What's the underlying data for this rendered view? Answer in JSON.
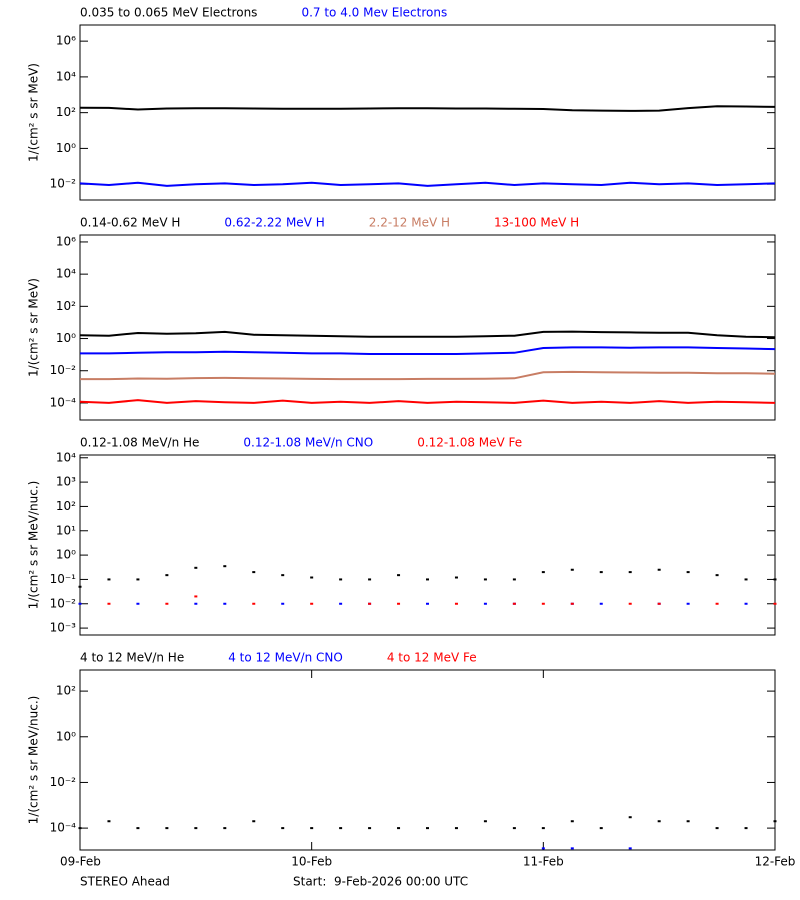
{
  "chart_data": [
    {
      "type": "line",
      "log_scale": true,
      "ylabel": "1/(cm² s sr MeV)",
      "x": [
        0,
        0.125,
        0.25,
        0.375,
        0.5,
        0.625,
        0.75,
        0.875,
        1,
        1.125,
        1.25,
        1.375,
        1.5,
        1.625,
        1.75,
        1.875,
        2,
        2.125,
        2.25,
        2.375,
        2.5,
        2.625,
        2.75,
        2.875,
        3
      ],
      "xlim": [
        0,
        3
      ],
      "ylim": [
        0.0013,
        8000000
      ],
      "yticks": [
        {
          "value": 0.01,
          "label": "10⁻²"
        },
        {
          "value": 1,
          "label": "10⁰"
        },
        {
          "value": 100,
          "label": "10²"
        },
        {
          "value": 10000,
          "label": "10⁴"
        },
        {
          "value": 1000000,
          "label": "10⁶"
        }
      ],
      "series": [
        {
          "name": "0.035 to 0.065 MeV Electrons",
          "color": "#000000",
          "values": [
            190,
            185,
            150,
            170,
            175,
            175,
            170,
            165,
            165,
            165,
            170,
            175,
            175,
            170,
            170,
            165,
            160,
            135,
            130,
            125,
            130,
            180,
            230,
            220,
            210
          ]
        },
        {
          "name": "0.7 to 4.0 Mev Electrons",
          "color": "#0000ff",
          "values": [
            0.011,
            0.009,
            0.012,
            0.008,
            0.01,
            0.011,
            0.009,
            0.01,
            0.012,
            0.009,
            0.01,
            0.011,
            0.008,
            0.01,
            0.012,
            0.009,
            0.011,
            0.01,
            0.009,
            0.012,
            0.01,
            0.011,
            0.009,
            0.01,
            0.011
          ]
        }
      ]
    },
    {
      "type": "line",
      "log_scale": true,
      "ylabel": "1/(cm² s sr MeV)",
      "x": [
        0,
        0.125,
        0.25,
        0.375,
        0.5,
        0.625,
        0.75,
        0.875,
        1,
        1.125,
        1.25,
        1.375,
        1.5,
        1.625,
        1.75,
        1.875,
        2,
        2.125,
        2.25,
        2.375,
        2.5,
        2.625,
        2.75,
        2.875,
        3
      ],
      "xlim": [
        0,
        3
      ],
      "ylim": [
        8.7e-06,
        2700000
      ],
      "yticks": [
        {
          "value": 0.0001,
          "label": "10⁻⁴"
        },
        {
          "value": 0.01,
          "label": "10⁻²"
        },
        {
          "value": 1,
          "label": "10⁰"
        },
        {
          "value": 100,
          "label": "10²"
        },
        {
          "value": 10000,
          "label": "10⁴"
        },
        {
          "value": 1000000,
          "label": "10⁶"
        }
      ],
      "series": [
        {
          "name": "0.14-0.62 MeV H",
          "color": "#000000",
          "values": [
            1.6,
            1.5,
            2.2,
            2.0,
            2.1,
            2.6,
            1.7,
            1.6,
            1.5,
            1.4,
            1.3,
            1.3,
            1.3,
            1.3,
            1.4,
            1.5,
            2.6,
            2.7,
            2.5,
            2.4,
            2.3,
            2.3,
            1.6,
            1.3,
            1.2
          ]
        },
        {
          "name": "0.62-2.22 MeV H",
          "color": "#0000ff",
          "values": [
            0.12,
            0.12,
            0.13,
            0.14,
            0.14,
            0.15,
            0.14,
            0.13,
            0.12,
            0.12,
            0.11,
            0.11,
            0.11,
            0.11,
            0.12,
            0.13,
            0.26,
            0.28,
            0.28,
            0.27,
            0.28,
            0.28,
            0.26,
            0.24,
            0.22
          ]
        },
        {
          "name": "2.2-12 MeV H",
          "color": "#c87d64",
          "values": [
            0.003,
            0.003,
            0.0033,
            0.0032,
            0.0035,
            0.0036,
            0.0034,
            0.0033,
            0.0031,
            0.003,
            0.003,
            0.003,
            0.0031,
            0.0031,
            0.0032,
            0.0034,
            0.008,
            0.0085,
            0.008,
            0.0078,
            0.0075,
            0.0075,
            0.007,
            0.007,
            0.0065
          ]
        },
        {
          "name": "13-100 MeV H",
          "color": "#ff0000",
          "values": [
            0.00012,
            0.0001,
            0.00015,
            0.0001,
            0.00013,
            0.00011,
            0.0001,
            0.00014,
            0.0001,
            0.00012,
            0.0001,
            0.00013,
            0.0001,
            0.00012,
            0.00011,
            0.0001,
            0.00014,
            0.0001,
            0.00012,
            0.0001,
            0.00013,
            0.0001,
            0.00012,
            0.00011,
            0.0001
          ]
        }
      ]
    },
    {
      "type": "scatter",
      "log_scale": true,
      "ylabel": "1/(cm² s sr MeV/nuc.)",
      "x": [
        0,
        0.125,
        0.25,
        0.375,
        0.5,
        0.625,
        0.75,
        0.875,
        1,
        1.125,
        1.25,
        1.375,
        1.5,
        1.625,
        1.75,
        1.875,
        2,
        2.125,
        2.25,
        2.375,
        2.5,
        2.625,
        2.75,
        2.875,
        3
      ],
      "xlim": [
        0,
        3
      ],
      "ylim": [
        0.00052,
        13000
      ],
      "yticks": [
        {
          "value": 0.001,
          "label": "10⁻³"
        },
        {
          "value": 0.01,
          "label": "10⁻²"
        },
        {
          "value": 0.1,
          "label": "10⁻¹"
        },
        {
          "value": 1,
          "label": "10⁰"
        },
        {
          "value": 10,
          "label": "10¹"
        },
        {
          "value": 100,
          "label": "10²"
        },
        {
          "value": 1000,
          "label": "10³"
        },
        {
          "value": 10000,
          "label": "10⁴"
        }
      ],
      "series": [
        {
          "name": "0.12-1.08 MeV/n He",
          "color": "#000000",
          "values": [
            0.05,
            0.1,
            0.1,
            0.15,
            0.3,
            0.35,
            0.2,
            0.15,
            0.12,
            0.1,
            0.1,
            0.15,
            0.1,
            0.12,
            0.1,
            0.1,
            0.2,
            0.25,
            0.2,
            0.2,
            0.25,
            0.2,
            0.15,
            0.1,
            0.1
          ]
        },
        {
          "name": "0.12-1.08 MeV/n CNO",
          "color": "#0000ff",
          "values": [
            0.01,
            null,
            0.01,
            null,
            0.01,
            0.01,
            null,
            0.01,
            null,
            0.01,
            0.01,
            null,
            0.01,
            null,
            0.01,
            0.01,
            null,
            0.01,
            0.01,
            null,
            0.01,
            0.01,
            null,
            0.01,
            null
          ]
        },
        {
          "name": "0.12-1.08 MeV Fe",
          "color": "#ff0000",
          "values": [
            null,
            0.01,
            null,
            0.01,
            0.02,
            null,
            0.01,
            null,
            0.01,
            null,
            0.01,
            0.01,
            null,
            0.01,
            null,
            0.01,
            0.01,
            0.01,
            null,
            0.01,
            0.01,
            null,
            0.01,
            null,
            0.01
          ]
        }
      ]
    },
    {
      "type": "scatter",
      "log_scale": true,
      "ylabel": "1/(cm² s sr MeV/nuc.)",
      "x": [
        0,
        0.125,
        0.25,
        0.375,
        0.5,
        0.625,
        0.75,
        0.875,
        1,
        1.125,
        1.25,
        1.375,
        1.5,
        1.625,
        1.75,
        1.875,
        2,
        2.125,
        2.25,
        2.375,
        2.5,
        2.625,
        2.75,
        2.875,
        3
      ],
      "xlim": [
        0,
        3
      ],
      "ylim": [
        1.1e-05,
        840
      ],
      "xticks": [
        {
          "value": 0,
          "label": "09-Feb"
        },
        {
          "value": 1,
          "label": "10-Feb"
        },
        {
          "value": 2,
          "label": "11-Feb"
        },
        {
          "value": 3,
          "label": "12-Feb"
        }
      ],
      "yticks": [
        {
          "value": 0.0001,
          "label": "10⁻⁴"
        },
        {
          "value": 0.01,
          "label": "10⁻²"
        },
        {
          "value": 1,
          "label": "10⁰"
        },
        {
          "value": 100,
          "label": "10²"
        }
      ],
      "series": [
        {
          "name": "4 to 12 MeV/n He",
          "color": "#000000",
          "values": [
            0.0001,
            0.0002,
            0.0001,
            0.0001,
            0.0001,
            0.0001,
            0.0002,
            0.0001,
            0.0001,
            0.0001,
            0.0001,
            0.0001,
            0.0001,
            0.0001,
            0.0002,
            0.0001,
            0.0001,
            0.0002,
            0.0001,
            0.0003,
            0.0002,
            0.0002,
            0.0001,
            0.0001,
            0.0002
          ]
        },
        {
          "name": "4 to 12 MeV/n CNO",
          "color": "#0000ff",
          "values": [
            null,
            null,
            null,
            null,
            null,
            null,
            null,
            null,
            null,
            null,
            null,
            null,
            null,
            null,
            null,
            null,
            1.3e-05,
            1.3e-05,
            null,
            1.3e-05,
            null,
            null,
            null,
            null,
            null
          ]
        },
        {
          "name": "4 to 12 MeV Fe",
          "color": "#ff0000",
          "values": [
            null,
            null,
            null,
            null,
            null,
            null,
            null,
            null,
            null,
            null,
            null,
            null,
            null,
            null,
            null,
            null,
            null,
            null,
            null,
            null,
            null,
            null,
            null,
            null,
            null
          ]
        }
      ]
    }
  ],
  "footer": {
    "spacecraft": "STEREO Ahead",
    "start": "Start:  9-Feb-2026 00:00 UTC"
  }
}
